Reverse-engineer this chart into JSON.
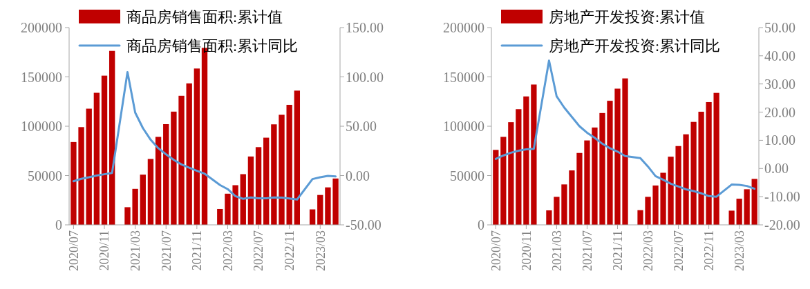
{
  "chart_data": [
    {
      "type": "bar",
      "legend": "top",
      "categories": [
        "2020/07",
        null,
        null,
        null,
        "2020/11",
        null,
        null,
        null,
        "2021/03",
        null,
        null,
        null,
        "2021/07",
        null,
        null,
        null,
        "2021/11",
        null,
        null,
        null,
        "2022/03",
        null,
        null,
        null,
        "2022/07",
        null,
        null,
        null,
        "2022/11",
        null,
        null,
        null,
        "2023/03",
        null,
        null
      ],
      "ylim": [
        0,
        200000
      ],
      "yticks": [
        0,
        50000,
        100000,
        150000,
        200000
      ],
      "y2lim": [
        -50,
        150
      ],
      "y2ticks": [
        {
          "value": -50,
          "label": "-50.00"
        },
        {
          "value": 0,
          "label": "0.00"
        },
        {
          "value": 50,
          "label": "50.00"
        },
        {
          "value": 100,
          "label": "100.00"
        },
        {
          "value": 150,
          "label": "150.00"
        }
      ],
      "series": [
        {
          "name": "商品房销售面积:累计值",
          "color": "#c00000",
          "values": [
            84000,
            99100,
            117800,
            133900,
            151300,
            176400,
            null,
            17900,
            36500,
            50900,
            66800,
            89200,
            102100,
            114800,
            130900,
            143400,
            158500,
            179400,
            null,
            16100,
            31600,
            40200,
            51400,
            69300,
            78800,
            88400,
            101900,
            111600,
            121700,
            136100,
            null,
            15700,
            30300,
            38000,
            47000
          ]
        },
        {
          "name": "商品房销售面积:累计同比",
          "type": "line",
          "axis": "y2",
          "color": "#5b9bd5",
          "values": [
            -5.8,
            -3.3,
            -1.8,
            0.0,
            1.3,
            2.6,
            null,
            104.9,
            63.8,
            48.1,
            36.3,
            27.7,
            21.5,
            15.9,
            11.3,
            7.9,
            4.8,
            1.9,
            null,
            -9.6,
            -13.8,
            -20.9,
            -23.6,
            -22.2,
            -23.1,
            -23.0,
            -22.2,
            -22.3,
            -23.3,
            -24.3,
            null,
            -3.6,
            -1.8,
            -0.4,
            -0.9
          ]
        }
      ]
    },
    {
      "type": "bar",
      "legend": "top",
      "categories": [
        "2020/07",
        null,
        null,
        null,
        "2020/11",
        null,
        null,
        null,
        "2021/03",
        null,
        null,
        null,
        "2021/07",
        null,
        null,
        null,
        "2021/11",
        null,
        null,
        null,
        "2022/03",
        null,
        null,
        null,
        "2022/07",
        null,
        null,
        null,
        "2022/11",
        null,
        null,
        null,
        "2023/03",
        null,
        null
      ],
      "ylim": [
        0,
        200000
      ],
      "yticks": [
        0,
        50000,
        100000,
        150000,
        200000
      ],
      "y2lim": [
        -20,
        50
      ],
      "y2ticks": [
        {
          "value": -20,
          "label": "-20.00"
        },
        {
          "value": -10,
          "label": "-10.00"
        },
        {
          "value": 0,
          "label": "0.00"
        },
        {
          "value": 10,
          "label": "10.00"
        },
        {
          "value": 20,
          "label": "20.00"
        },
        {
          "value": 30,
          "label": "30.00"
        },
        {
          "value": 40,
          "label": "40.00"
        },
        {
          "value": 50,
          "label": "50.00"
        }
      ],
      "series": [
        {
          "name": "房地产开发投资:累计值",
          "color": "#c00000",
          "values": [
            76000,
            89200,
            104100,
            117300,
            130200,
            142300,
            null,
            14700,
            28400,
            41000,
            55200,
            72900,
            85600,
            98700,
            113400,
            125800,
            138100,
            148500,
            null,
            14900,
            28400,
            39900,
            52800,
            69100,
            79900,
            91800,
            104400,
            114700,
            124500,
            133800,
            null,
            14400,
            26500,
            36100,
            46600
          ]
        },
        {
          "name": "房地产开发投资:累计同比",
          "type": "line",
          "axis": "y2",
          "color": "#5b9bd5",
          "values": [
            3.4,
            4.6,
            5.6,
            6.3,
            6.8,
            7.0,
            null,
            38.3,
            25.6,
            21.6,
            18.3,
            15.0,
            12.7,
            10.9,
            8.8,
            7.2,
            6.0,
            4.4,
            null,
            3.7,
            0.7,
            -2.7,
            -4.0,
            -5.4,
            -6.4,
            -7.4,
            -8.0,
            -8.8,
            -9.8,
            -10.0,
            null,
            -5.7,
            -5.8,
            -6.2,
            -7.2
          ]
        }
      ]
    }
  ]
}
